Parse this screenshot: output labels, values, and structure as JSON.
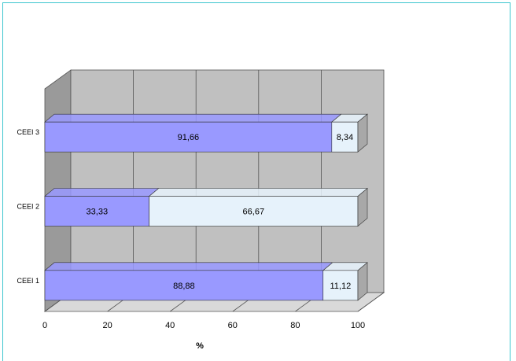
{
  "chart_data": {
    "type": "bar",
    "orientation": "horizontal",
    "stacked": true,
    "three_d": true,
    "categories": [
      "CEEI 1",
      "CEEI 2",
      "CEEI 3"
    ],
    "series": [
      {
        "values": [
          88.88,
          33.33,
          91.66
        ],
        "labels": [
          "88,88",
          "33,33",
          "91,66"
        ],
        "color": "#9999ff"
      },
      {
        "values": [
          11.12,
          66.67,
          8.34
        ],
        "labels": [
          "11,12",
          "66,67",
          "8,34"
        ],
        "color": "#e6f2fb"
      }
    ],
    "xlabel": "%",
    "xlim": [
      0,
      100
    ],
    "x_ticks": [
      0,
      20,
      40,
      60,
      80,
      100
    ],
    "grid": true,
    "legend": "none"
  },
  "colors": {
    "frame": "#3cc6cf",
    "back_wall": "#c0c0c0",
    "side_wall": "#9a9a9a",
    "floor": "#d9d9d9"
  }
}
